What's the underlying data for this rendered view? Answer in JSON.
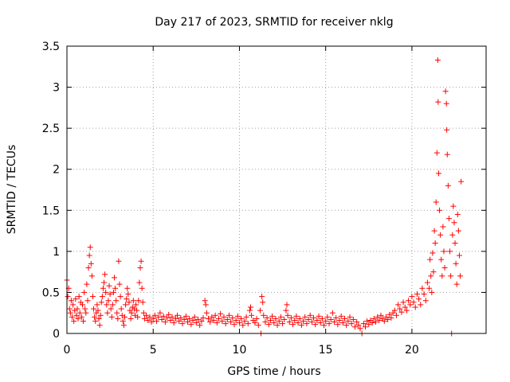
{
  "chart_data": {
    "type": "scatter",
    "title": "Day 217 of 2023, SRMTID for receiver nklg",
    "xlabel": "GPS time / hours",
    "ylabel": "SRMTID / TECUs",
    "xlim": [
      0,
      24.3
    ],
    "ylim": [
      0,
      3.5
    ],
    "xticks": [
      0,
      5,
      10,
      15,
      20
    ],
    "xtick_labels": [
      "0",
      "5",
      "10",
      "15",
      "20"
    ],
    "yticks": [
      0,
      0.5,
      1,
      1.5,
      2,
      2.5,
      3,
      3.5
    ],
    "ytick_labels": [
      "0",
      "0.5",
      "1",
      "1.5",
      "2",
      "2.5",
      "3",
      "3.5"
    ],
    "grid": true,
    "marker": "+",
    "color": "#ff0000",
    "series": [
      {
        "name": "SRMTID",
        "points": [
          [
            0.0,
            0.65
          ],
          [
            0.05,
            0.45
          ],
          [
            0.1,
            0.55
          ],
          [
            0.15,
            0.3
          ],
          [
            0.2,
            0.25
          ],
          [
            0.25,
            0.4
          ],
          [
            0.3,
            0.2
          ],
          [
            0.35,
            0.35
          ],
          [
            0.4,
            0.15
          ],
          [
            0.45,
            0.28
          ],
          [
            0.5,
            0.42
          ],
          [
            0.55,
            0.22
          ],
          [
            0.6,
            0.3
          ],
          [
            0.65,
            0.18
          ],
          [
            0.7,
            0.45
          ],
          [
            0.75,
            0.25
          ],
          [
            0.8,
            0.38
          ],
          [
            0.85,
            0.2
          ],
          [
            0.9,
            0.35
          ],
          [
            0.95,
            0.15
          ],
          [
            1.0,
            0.5
          ],
          [
            1.05,
            0.3
          ],
          [
            1.1,
            0.25
          ],
          [
            1.15,
            0.6
          ],
          [
            1.2,
            0.4
          ],
          [
            1.25,
            0.8
          ],
          [
            1.3,
            0.95
          ],
          [
            1.35,
            1.05
          ],
          [
            1.4,
            0.85
          ],
          [
            1.45,
            0.7
          ],
          [
            1.5,
            0.45
          ],
          [
            1.55,
            0.3
          ],
          [
            1.6,
            0.2
          ],
          [
            1.65,
            0.15
          ],
          [
            1.7,
            0.25
          ],
          [
            1.75,
            0.35
          ],
          [
            1.8,
            0.28
          ],
          [
            1.85,
            0.18
          ],
          [
            1.9,
            0.1
          ],
          [
            1.95,
            0.22
          ],
          [
            2.0,
            0.38
          ],
          [
            2.05,
            0.45
          ],
          [
            2.1,
            0.55
          ],
          [
            2.15,
            0.62
          ],
          [
            2.2,
            0.72
          ],
          [
            2.25,
            0.5
          ],
          [
            2.3,
            0.35
          ],
          [
            2.35,
            0.25
          ],
          [
            2.4,
            0.4
          ],
          [
            2.45,
            0.58
          ],
          [
            2.5,
            0.48
          ],
          [
            2.55,
            0.3
          ],
          [
            2.6,
            0.2
          ],
          [
            2.65,
            0.35
          ],
          [
            2.7,
            0.5
          ],
          [
            2.75,
            0.68
          ],
          [
            2.8,
            0.55
          ],
          [
            2.85,
            0.4
          ],
          [
            2.9,
            0.25
          ],
          [
            2.95,
            0.18
          ],
          [
            3.0,
            0.88
          ],
          [
            3.05,
            0.6
          ],
          [
            3.1,
            0.45
          ],
          [
            3.15,
            0.3
          ],
          [
            3.2,
            0.22
          ],
          [
            3.25,
            0.15
          ],
          [
            3.3,
            0.1
          ],
          [
            3.35,
            0.2
          ],
          [
            3.4,
            0.35
          ],
          [
            3.45,
            0.42
          ],
          [
            3.5,
            0.55
          ],
          [
            3.55,
            0.48
          ],
          [
            3.6,
            0.38
          ],
          [
            3.65,
            0.28
          ],
          [
            3.7,
            0.18
          ],
          [
            3.75,
            0.25
          ],
          [
            3.8,
            0.32
          ],
          [
            3.85,
            0.4
          ],
          [
            3.9,
            0.3
          ],
          [
            3.95,
            0.22
          ],
          [
            4.0,
            0.35
          ],
          [
            4.05,
            0.28
          ],
          [
            4.1,
            0.2
          ],
          [
            4.15,
            0.4
          ],
          [
            4.2,
            0.62
          ],
          [
            4.25,
            0.8
          ],
          [
            4.3,
            0.88
          ],
          [
            4.35,
            0.55
          ],
          [
            4.4,
            0.38
          ],
          [
            4.45,
            0.25
          ],
          [
            4.5,
            0.18
          ],
          [
            4.6,
            0.22
          ],
          [
            4.7,
            0.16
          ],
          [
            4.8,
            0.2
          ],
          [
            4.9,
            0.14
          ],
          [
            5.0,
            0.18
          ],
          [
            5.1,
            0.22
          ],
          [
            5.2,
            0.15
          ],
          [
            5.3,
            0.2
          ],
          [
            5.4,
            0.25
          ],
          [
            5.5,
            0.17
          ],
          [
            5.6,
            0.21
          ],
          [
            5.7,
            0.14
          ],
          [
            5.8,
            0.19
          ],
          [
            5.9,
            0.23
          ],
          [
            6.0,
            0.16
          ],
          [
            6.1,
            0.2
          ],
          [
            6.2,
            0.13
          ],
          [
            6.3,
            0.18
          ],
          [
            6.4,
            0.22
          ],
          [
            6.5,
            0.15
          ],
          [
            6.6,
            0.19
          ],
          [
            6.7,
            0.12
          ],
          [
            6.8,
            0.17
          ],
          [
            6.9,
            0.21
          ],
          [
            7.0,
            0.14
          ],
          [
            7.1,
            0.18
          ],
          [
            7.2,
            0.11
          ],
          [
            7.3,
            0.16
          ],
          [
            7.4,
            0.2
          ],
          [
            7.5,
            0.13
          ],
          [
            7.6,
            0.17
          ],
          [
            7.7,
            0.1
          ],
          [
            7.8,
            0.15
          ],
          [
            7.9,
            0.19
          ],
          [
            8.0,
            0.4
          ],
          [
            8.05,
            0.35
          ],
          [
            8.1,
            0.25
          ],
          [
            8.2,
            0.18
          ],
          [
            8.3,
            0.14
          ],
          [
            8.4,
            0.2
          ],
          [
            8.5,
            0.16
          ],
          [
            8.6,
            0.22
          ],
          [
            8.7,
            0.13
          ],
          [
            8.8,
            0.18
          ],
          [
            8.9,
            0.24
          ],
          [
            9.0,
            0.15
          ],
          [
            9.1,
            0.2
          ],
          [
            9.2,
            0.12
          ],
          [
            9.3,
            0.17
          ],
          [
            9.4,
            0.22
          ],
          [
            9.5,
            0.14
          ],
          [
            9.6,
            0.19
          ],
          [
            9.7,
            0.11
          ],
          [
            9.8,
            0.16
          ],
          [
            9.9,
            0.21
          ],
          [
            10.0,
            0.13
          ],
          [
            10.1,
            0.18
          ],
          [
            10.2,
            0.1
          ],
          [
            10.3,
            0.15
          ],
          [
            10.4,
            0.2
          ],
          [
            10.5,
            0.12
          ],
          [
            10.6,
            0.28
          ],
          [
            10.65,
            0.32
          ],
          [
            10.7,
            0.22
          ],
          [
            10.8,
            0.16
          ],
          [
            10.9,
            0.13
          ],
          [
            11.0,
            0.18
          ],
          [
            11.1,
            0.1
          ],
          [
            11.2,
            0.28
          ],
          [
            11.25,
            0.0
          ],
          [
            11.3,
            0.45
          ],
          [
            11.35,
            0.38
          ],
          [
            11.4,
            0.22
          ],
          [
            11.5,
            0.14
          ],
          [
            11.6,
            0.19
          ],
          [
            11.7,
            0.11
          ],
          [
            11.8,
            0.16
          ],
          [
            11.9,
            0.21
          ],
          [
            12.0,
            0.13
          ],
          [
            12.1,
            0.18
          ],
          [
            12.2,
            0.1
          ],
          [
            12.3,
            0.15
          ],
          [
            12.4,
            0.2
          ],
          [
            12.5,
            0.12
          ],
          [
            12.6,
            0.17
          ],
          [
            12.7,
            0.28
          ],
          [
            12.75,
            0.35
          ],
          [
            12.8,
            0.22
          ],
          [
            12.9,
            0.14
          ],
          [
            13.0,
            0.19
          ],
          [
            13.1,
            0.11
          ],
          [
            13.2,
            0.16
          ],
          [
            13.3,
            0.21
          ],
          [
            13.4,
            0.13
          ],
          [
            13.5,
            0.18
          ],
          [
            13.6,
            0.1
          ],
          [
            13.7,
            0.15
          ],
          [
            13.8,
            0.2
          ],
          [
            13.9,
            0.12
          ],
          [
            14.0,
            0.17
          ],
          [
            14.1,
            0.22
          ],
          [
            14.2,
            0.14
          ],
          [
            14.3,
            0.19
          ],
          [
            14.4,
            0.11
          ],
          [
            14.5,
            0.16
          ],
          [
            14.6,
            0.21
          ],
          [
            14.7,
            0.13
          ],
          [
            14.8,
            0.18
          ],
          [
            14.9,
            0.1
          ],
          [
            15.0,
            0.15
          ],
          [
            15.1,
            0.2
          ],
          [
            15.2,
            0.12
          ],
          [
            15.3,
            0.17
          ],
          [
            15.4,
            0.25
          ],
          [
            15.5,
            0.14
          ],
          [
            15.6,
            0.19
          ],
          [
            15.7,
            0.11
          ],
          [
            15.8,
            0.16
          ],
          [
            15.9,
            0.21
          ],
          [
            16.0,
            0.13
          ],
          [
            16.1,
            0.18
          ],
          [
            16.2,
            0.1
          ],
          [
            16.3,
            0.15
          ],
          [
            16.4,
            0.2
          ],
          [
            16.5,
            0.12
          ],
          [
            16.6,
            0.17
          ],
          [
            16.7,
            0.08
          ],
          [
            16.8,
            0.14
          ],
          [
            16.9,
            0.1
          ],
          [
            17.0,
            0.06
          ],
          [
            17.1,
            0.0
          ],
          [
            17.2,
            0.12
          ],
          [
            17.3,
            0.08
          ],
          [
            17.4,
            0.15
          ],
          [
            17.5,
            0.11
          ],
          [
            17.6,
            0.16
          ],
          [
            17.7,
            0.13
          ],
          [
            17.8,
            0.18
          ],
          [
            17.9,
            0.14
          ],
          [
            18.0,
            0.2
          ],
          [
            18.1,
            0.16
          ],
          [
            18.2,
            0.22
          ],
          [
            18.3,
            0.18
          ],
          [
            18.4,
            0.15
          ],
          [
            18.5,
            0.2
          ],
          [
            18.6,
            0.17
          ],
          [
            18.7,
            0.23
          ],
          [
            18.8,
            0.19
          ],
          [
            18.9,
            0.25
          ],
          [
            19.0,
            0.28
          ],
          [
            19.1,
            0.22
          ],
          [
            19.2,
            0.35
          ],
          [
            19.3,
            0.3
          ],
          [
            19.4,
            0.26
          ],
          [
            19.5,
            0.38
          ],
          [
            19.6,
            0.32
          ],
          [
            19.7,
            0.28
          ],
          [
            19.8,
            0.4
          ],
          [
            19.9,
            0.35
          ],
          [
            20.0,
            0.45
          ],
          [
            20.1,
            0.38
          ],
          [
            20.2,
            0.32
          ],
          [
            20.3,
            0.48
          ],
          [
            20.4,
            0.42
          ],
          [
            20.5,
            0.35
          ],
          [
            20.6,
            0.55
          ],
          [
            20.7,
            0.48
          ],
          [
            20.8,
            0.4
          ],
          [
            20.9,
            0.62
          ],
          [
            21.0,
            0.55
          ],
          [
            21.05,
            0.9
          ],
          [
            21.1,
            0.7
          ],
          [
            21.15,
            0.5
          ],
          [
            21.2,
            0.98
          ],
          [
            21.25,
            0.75
          ],
          [
            21.3,
            1.25
          ],
          [
            21.35,
            1.1
          ],
          [
            21.4,
            1.6
          ],
          [
            21.45,
            2.2
          ],
          [
            21.5,
            3.33
          ],
          [
            21.52,
            2.82
          ],
          [
            21.55,
            1.95
          ],
          [
            21.6,
            1.5
          ],
          [
            21.65,
            1.2
          ],
          [
            21.7,
            0.9
          ],
          [
            21.75,
            0.7
          ],
          [
            21.8,
            1.3
          ],
          [
            21.85,
            1.0
          ],
          [
            21.9,
            0.8
          ],
          [
            21.95,
            2.95
          ],
          [
            22.0,
            2.8
          ],
          [
            22.02,
            2.48
          ],
          [
            22.05,
            2.18
          ],
          [
            22.1,
            1.8
          ],
          [
            22.15,
            1.4
          ],
          [
            22.2,
            1.0
          ],
          [
            22.25,
            0.7
          ],
          [
            22.3,
            0.0
          ],
          [
            22.35,
            1.2
          ],
          [
            22.4,
            1.55
          ],
          [
            22.45,
            1.35
          ],
          [
            22.5,
            1.1
          ],
          [
            22.55,
            0.85
          ],
          [
            22.6,
            0.6
          ],
          [
            22.65,
            1.45
          ],
          [
            22.7,
            1.25
          ],
          [
            22.75,
            0.95
          ],
          [
            22.8,
            0.7
          ],
          [
            22.85,
            1.85
          ]
        ]
      }
    ]
  }
}
